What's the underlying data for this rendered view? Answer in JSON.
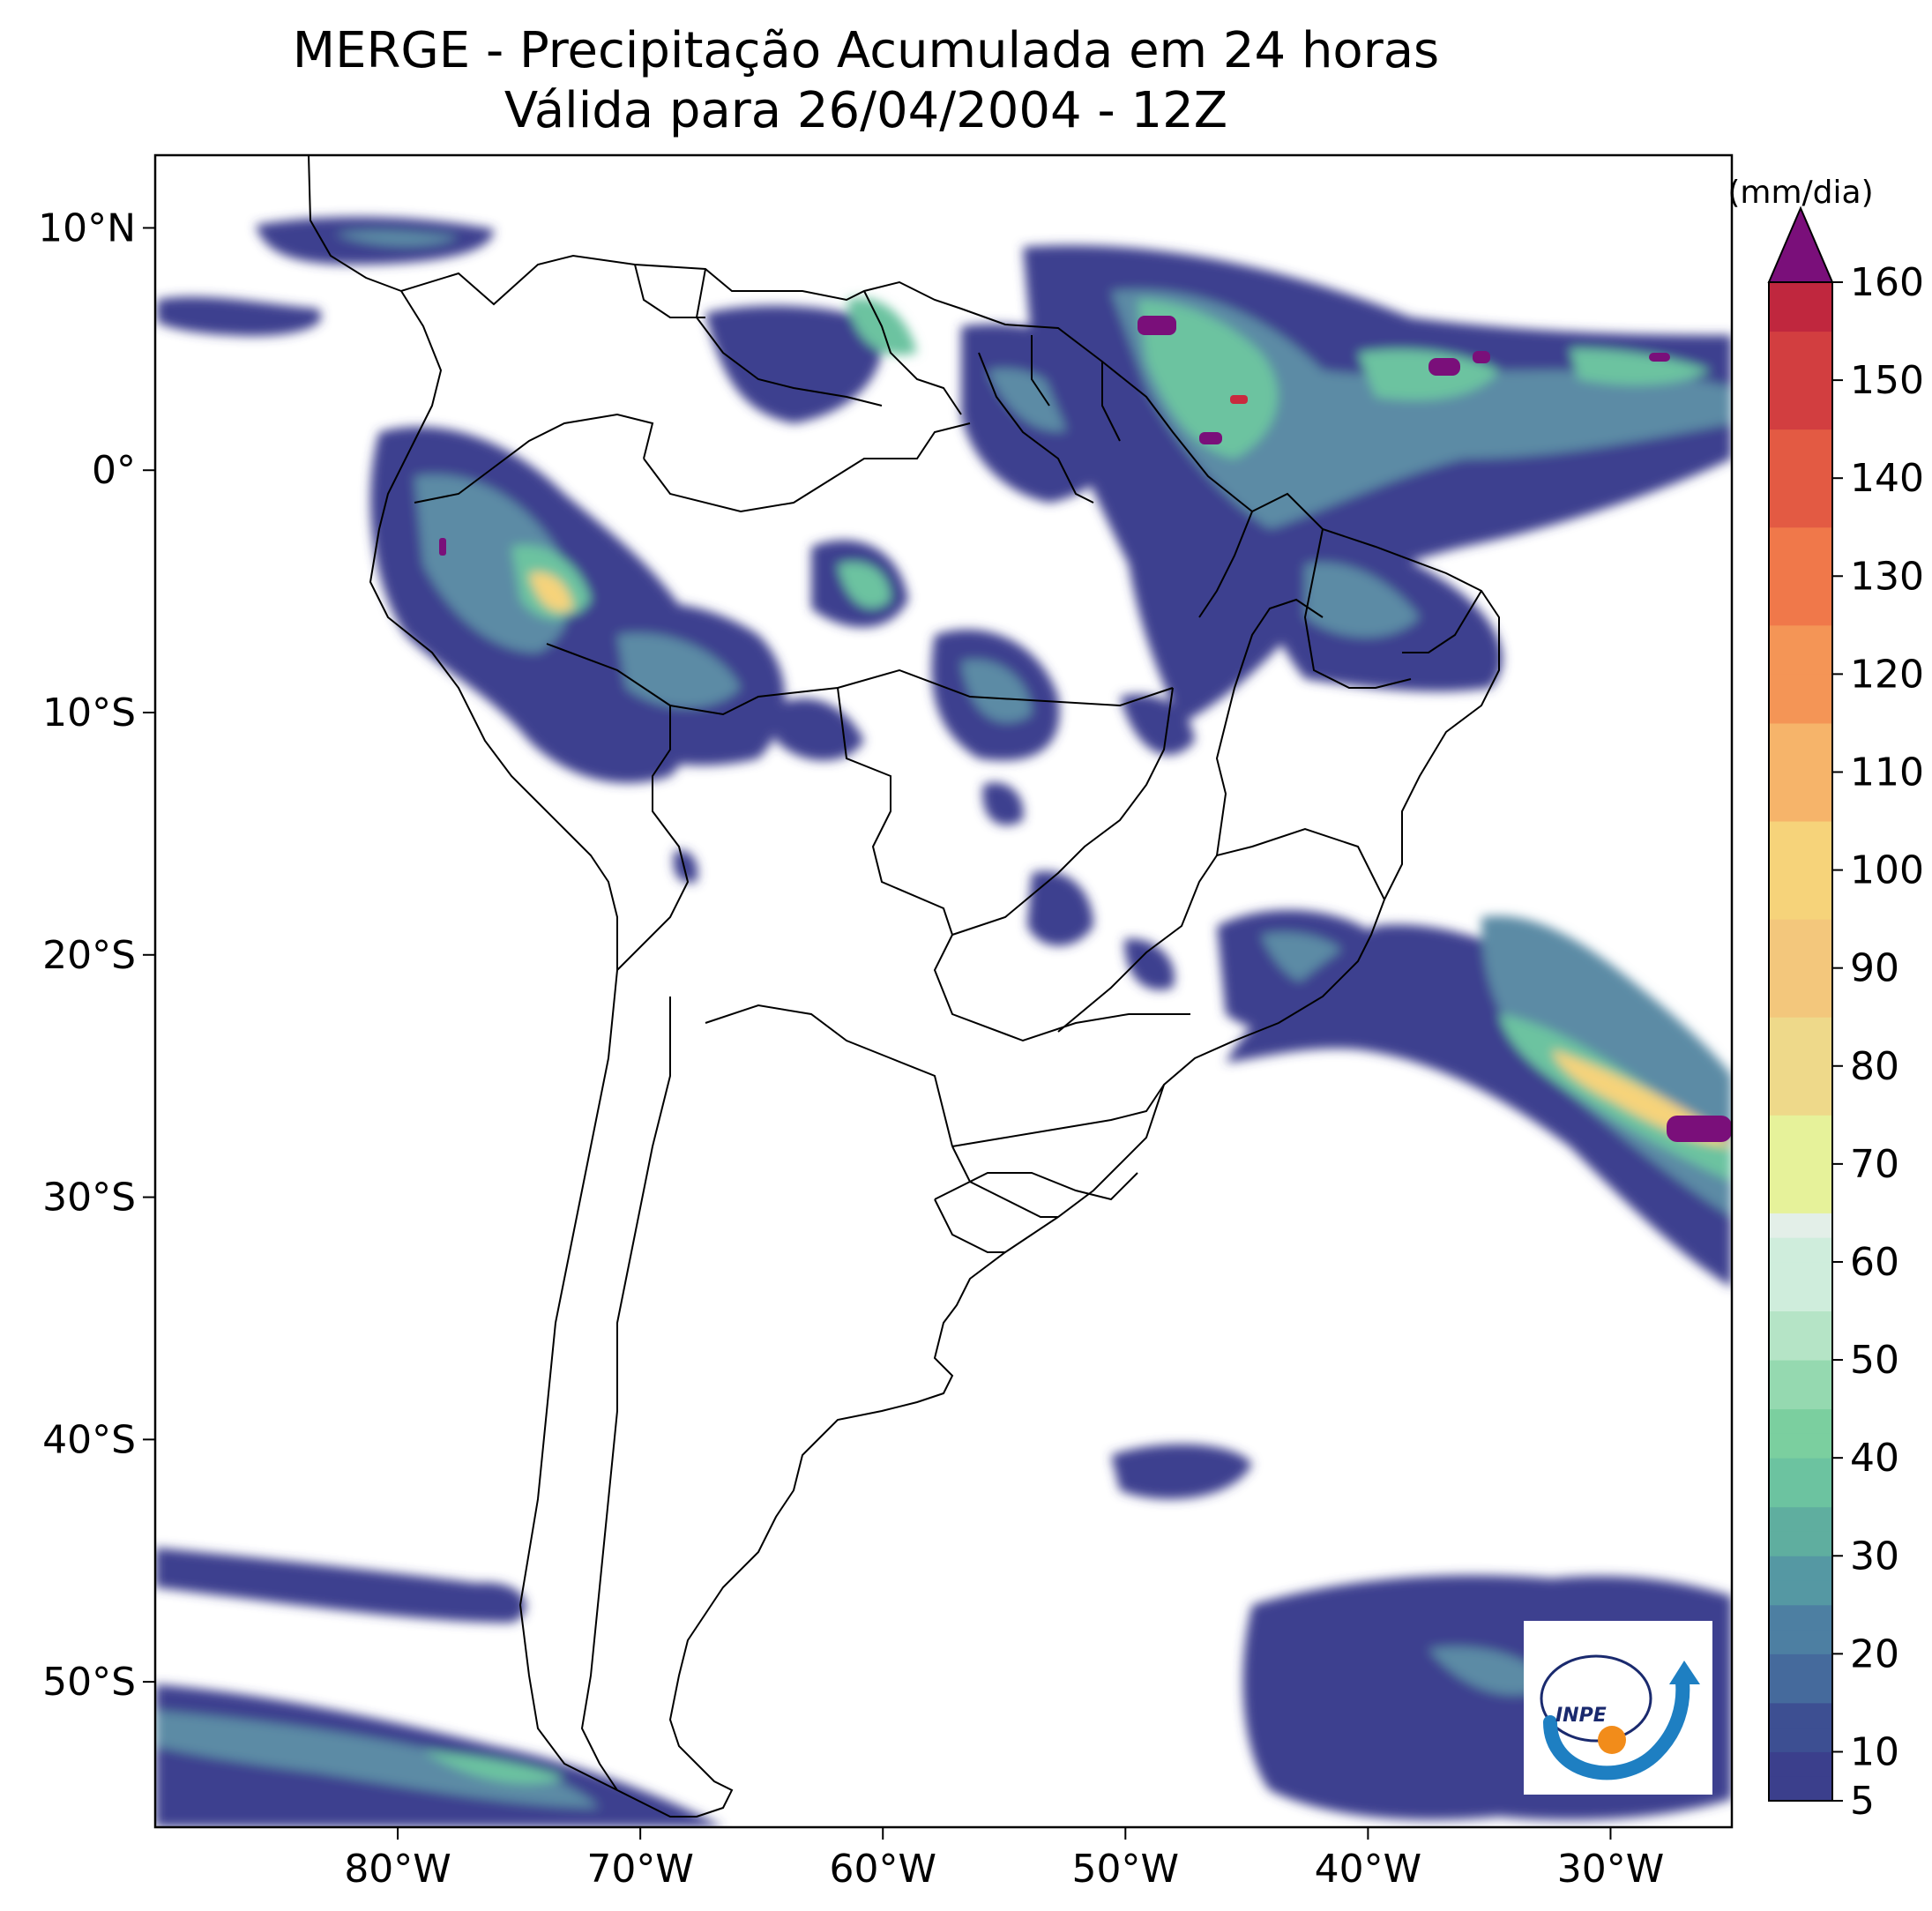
{
  "title": {
    "line1": "MERGE - Precipitação Acumulada em 24 horas",
    "line2": "Válida para 26/04/2004 - 12Z"
  },
  "map": {
    "lon_range": [
      -90,
      -25
    ],
    "lat_range": [
      -56,
      13
    ],
    "lat_ticks": [
      {
        "value": 10,
        "label": "10°N"
      },
      {
        "value": 0,
        "label": "0°"
      },
      {
        "value": -10,
        "label": "10°S"
      },
      {
        "value": -20,
        "label": "20°S"
      },
      {
        "value": -30,
        "label": "30°S"
      },
      {
        "value": -40,
        "label": "40°S"
      },
      {
        "value": -50,
        "label": "50°S"
      }
    ],
    "lon_ticks": [
      {
        "value": -80,
        "label": "80°W"
      },
      {
        "value": -70,
        "label": "70°W"
      },
      {
        "value": -60,
        "label": "60°W"
      },
      {
        "value": -50,
        "label": "50°W"
      },
      {
        "value": -40,
        "label": "40°W"
      },
      {
        "value": -30,
        "label": "30°W"
      }
    ]
  },
  "colorbar": {
    "units": "(mm/dia)",
    "min": 5,
    "max": 160,
    "extend": "max",
    "tick_labels": [
      "5",
      "10",
      "20",
      "30",
      "40",
      "50",
      "60",
      "70",
      "80",
      "90",
      "100",
      "110",
      "120",
      "130",
      "140",
      "150",
      "160"
    ],
    "levels": [
      5,
      7.5,
      10,
      12.5,
      15,
      17.5,
      20,
      22.5,
      25,
      27.5,
      30,
      32.5,
      35,
      37.5,
      40,
      42.5,
      45,
      47.5,
      50,
      52.5,
      55,
      57.5,
      60,
      62.5,
      65,
      70,
      75,
      80,
      85,
      90,
      95,
      100,
      105,
      110,
      115,
      120,
      125,
      130,
      135,
      140,
      145,
      150,
      155,
      160
    ],
    "colors": {
      "low": "#3e3f8f",
      "mid": "#6cc3a0",
      "light": "#e3efe8",
      "yellow": "#f6d37a",
      "orange": "#f4894a",
      "red": "#c92a3e",
      "extend": "#7a0f7a"
    }
  },
  "logo": {
    "text": "INPE"
  }
}
